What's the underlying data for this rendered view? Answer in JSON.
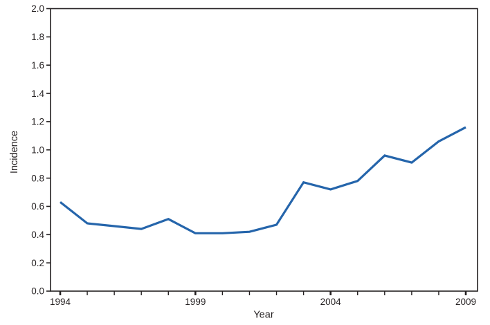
{
  "figure": {
    "background": "#ffffff",
    "axis_color": "#231f20",
    "text_color": "#231f20"
  },
  "chart_data": {
    "type": "line",
    "title": "",
    "xlabel": "Year",
    "ylabel": "Incidence",
    "x": [
      1994,
      1995,
      1996,
      1997,
      1998,
      1999,
      2000,
      2001,
      2002,
      2003,
      2004,
      2005,
      2006,
      2007,
      2008,
      2009
    ],
    "series": [
      {
        "name": "Incidence",
        "color": "#2565ab",
        "values": [
          0.63,
          0.48,
          0.46,
          0.44,
          0.51,
          0.41,
          0.41,
          0.42,
          0.47,
          0.77,
          0.72,
          0.78,
          0.96,
          0.91,
          1.06,
          1.16
        ]
      }
    ],
    "xlim": [
      1994,
      2009
    ],
    "ylim": [
      0,
      2.0
    ],
    "yticks": [
      "0.0",
      "0.2",
      "0.4",
      "0.6",
      "0.8",
      "1.0",
      "1.2",
      "1.4",
      "1.6",
      "1.8",
      "2.0"
    ],
    "xtick_labels": [
      "1994",
      "1999",
      "2004",
      "2009"
    ],
    "xticks_minor_every": 1,
    "grid": false,
    "legend": "none",
    "frame": true,
    "line_width": 3.2
  }
}
